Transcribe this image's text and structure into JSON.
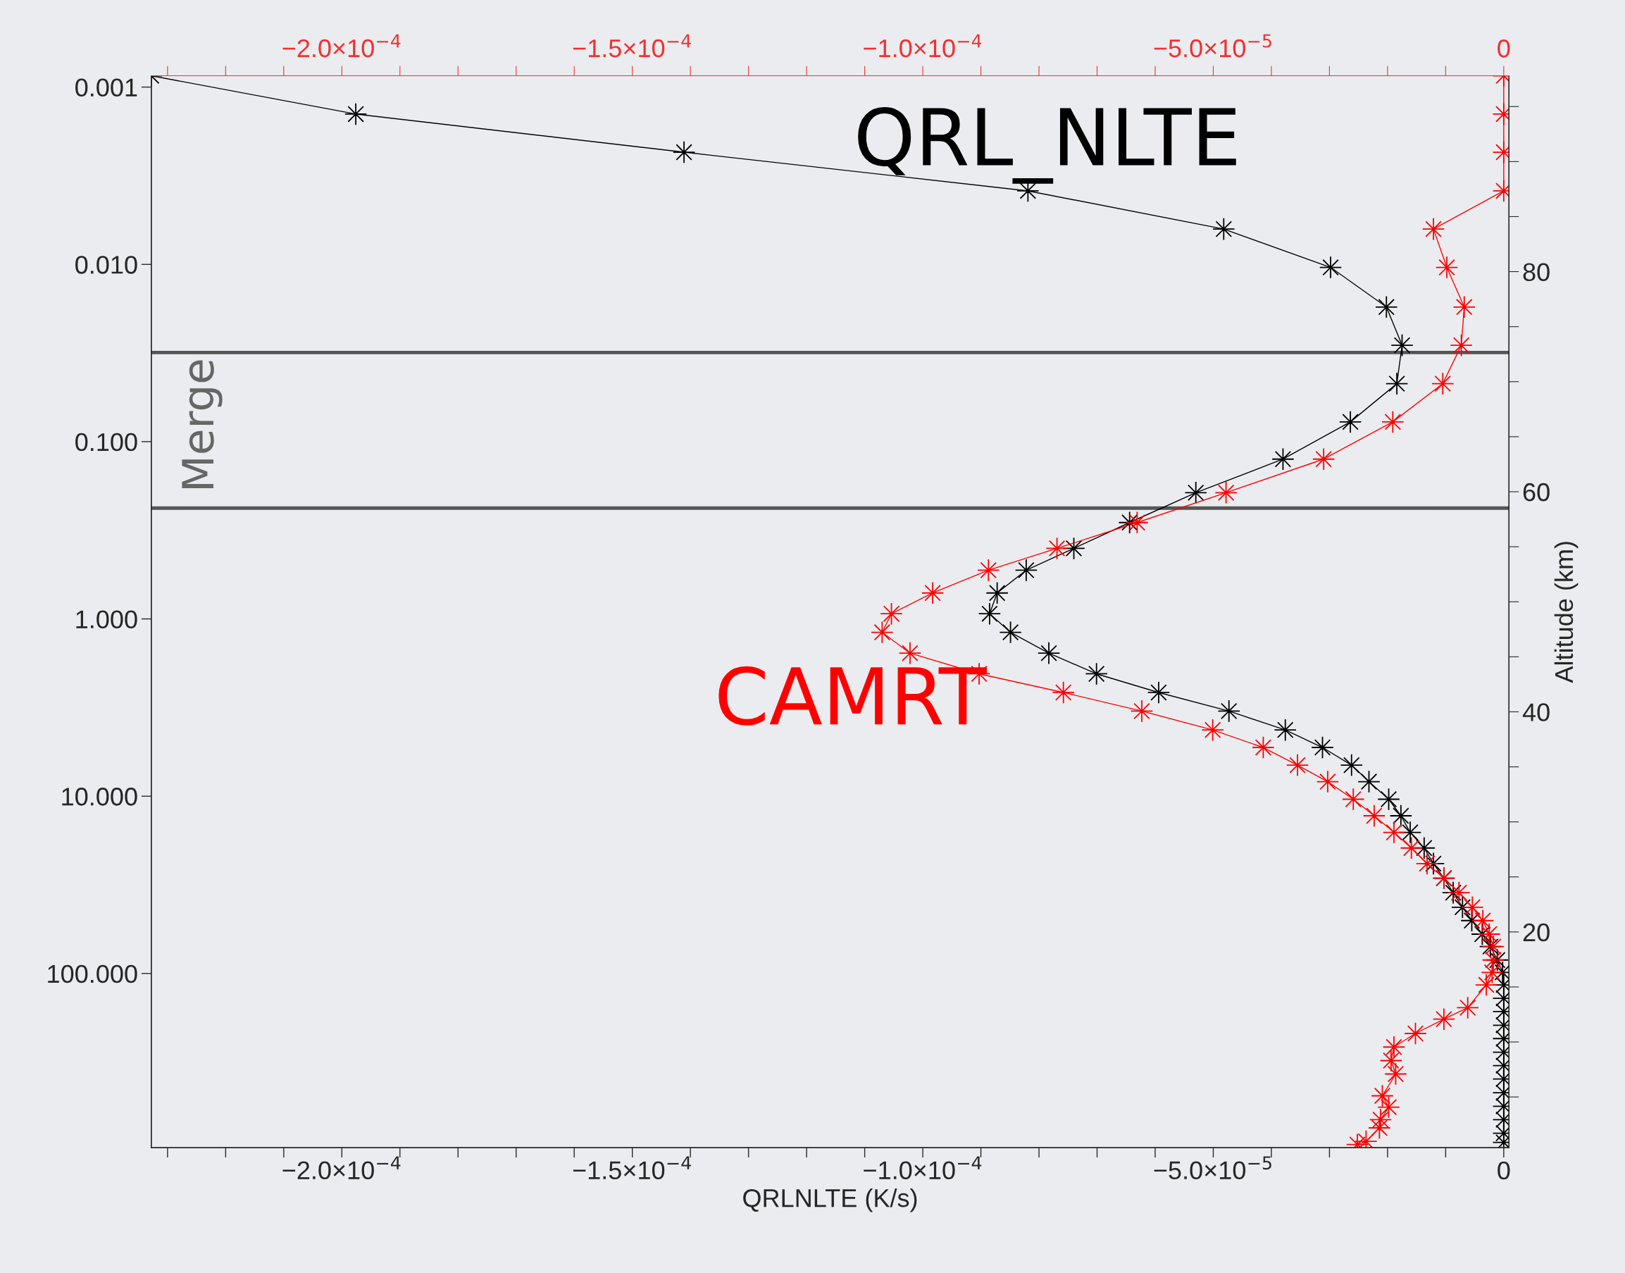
{
  "chart_data": {
    "type": "line",
    "xlabel": "QRLNLTE (K/s)",
    "y2label": "Altitude (km)",
    "xlim": [
      -0.0002328,
      9e-07
    ],
    "ylim": [
      960,
      0.000863
    ],
    "log": "y",
    "y2lim": [
      0.4,
      97.8
    ],
    "x2lim": [
      -0.0002328,
      9e-07
    ],
    "xticks": [
      {
        "value": -0.0002,
        "label": "−2.0×10$^{−4}$"
      },
      {
        "value": -0.00015,
        "label": "−1.5×10$^{−4}$"
      },
      {
        "value": -0.0001,
        "label": "−1.0×10$^{−4}$"
      },
      {
        "value": -5e-05,
        "label": "−5.0×10$^{−5}$"
      },
      0,
      {
        "value": -0.00023,
        "label": null
      },
      {
        "value": -0.00022,
        "label": null
      },
      {
        "value": -0.00021,
        "label": null
      },
      {
        "value": -0.00019,
        "label": null
      },
      {
        "value": -0.00018,
        "label": null
      },
      {
        "value": -0.00017,
        "label": null
      },
      {
        "value": -0.00016,
        "label": null
      },
      {
        "value": -0.00014,
        "label": null
      },
      {
        "value": -0.00013,
        "label": null
      },
      {
        "value": -0.00012,
        "label": null
      },
      {
        "value": -0.00011,
        "label": null
      },
      {
        "value": -9e-05,
        "label": null
      },
      {
        "value": -8e-05,
        "label": null
      },
      {
        "value": -7e-05,
        "label": null
      },
      {
        "value": -6e-05,
        "label": null
      },
      {
        "value": -4e-05,
        "label": null
      },
      {
        "value": -3e-05,
        "label": null
      },
      {
        "value": -2e-05,
        "label": null
      },
      {
        "value": -1e-05,
        "label": null
      }
    ],
    "x2ticks": [
      {
        "value": -0.0002,
        "label": "−2.0×10$^{−4}$"
      },
      {
        "value": -0.00015,
        "label": "−1.5×10$^{−4}$"
      },
      {
        "value": -0.0001,
        "label": "−1.0×10$^{−4}$"
      },
      {
        "value": -5e-05,
        "label": "−5.0×10$^{−5}$"
      },
      0,
      {
        "value": -0.00023,
        "label": null
      },
      {
        "value": -0.00022,
        "label": null
      },
      {
        "value": -0.00021,
        "label": null
      },
      {
        "value": -0.00019,
        "label": null
      },
      {
        "value": -0.00018,
        "label": null
      },
      {
        "value": -0.00017,
        "label": null
      },
      {
        "value": -0.00016,
        "label": null
      },
      {
        "value": -0.00014,
        "label": null
      },
      {
        "value": -0.00013,
        "label": null
      },
      {
        "value": -0.00012,
        "label": null
      },
      {
        "value": -0.00011,
        "label": null
      },
      {
        "value": -9e-05,
        "label": null
      },
      {
        "value": -8e-05,
        "label": null
      },
      {
        "value": -7e-05,
        "label": null
      },
      {
        "value": -6e-05,
        "label": null
      },
      {
        "value": -4e-05,
        "label": null
      },
      {
        "value": -3e-05,
        "label": null
      },
      {
        "value": -2e-05,
        "label": null
      },
      {
        "value": -1e-05,
        "label": null
      }
    ],
    "yticks": [
      {
        "value": 0.001,
        "label": "0.001"
      },
      {
        "value": 0.01,
        "label": "0.010"
      },
      {
        "value": 0.1,
        "label": "0.100"
      },
      {
        "value": 1,
        "label": "1.000"
      },
      {
        "value": 10,
        "label": "10.000"
      },
      {
        "value": 100,
        "label": "100.000"
      }
    ],
    "y2ticks": [
      20,
      40,
      60,
      80,
      {
        "value": 5,
        "label": null
      },
      {
        "value": 10,
        "label": null
      },
      {
        "value": 15,
        "label": null
      },
      {
        "value": 25,
        "label": null
      },
      {
        "value": 30,
        "label": null
      },
      {
        "value": 35,
        "label": null
      },
      {
        "value": 45,
        "label": null
      },
      {
        "value": 50,
        "label": null
      },
      {
        "value": 55,
        "label": null
      },
      {
        "value": 65,
        "label": null
      },
      {
        "value": 70,
        "label": null
      },
      {
        "value": 75,
        "label": null
      },
      {
        "value": 85,
        "label": null
      },
      {
        "value": 90,
        "label": null
      },
      {
        "value": 95,
        "label": null
      }
    ],
    "marker": "star",
    "grid": false,
    "ref_lines": [
      {
        "axis": "y",
        "value": 0.0314,
        "color": "#555555"
      },
      {
        "axis": "y",
        "value": 0.237,
        "color": "#555555"
      }
    ],
    "annotations": [
      "Merge"
    ],
    "series": [
      {
        "name": "QRL_NLTE",
        "color": "#000000",
        "x": [
          -0.0002328,
          -0.0001976,
          -0.0001411,
          -8.19e-05,
          -4.82e-05,
          -2.98e-05,
          -2.02e-05,
          -1.75e-05,
          -1.84e-05,
          -2.64e-05,
          -3.8e-05,
          -5.3e-05,
          -6.44e-05,
          -7.4e-05,
          -8.22e-05,
          -8.72e-05,
          -8.85e-05,
          -8.49e-05,
          -7.83e-05,
          -7.01e-05,
          -5.94e-05,
          -4.73e-05,
          -3.76e-05,
          -3.12e-05,
          -2.62e-05,
          -2.32e-05,
          -1.98e-05,
          -1.77e-05,
          -1.61e-05,
          -1.37e-05,
          -1.21e-05,
          -1.03e-05,
          -8.7e-06,
          -7.1e-06,
          -5.5e-06,
          -3.7e-06,
          -2.3e-06,
          -1.1e-06,
          -2e-07,
          0,
          0,
          0,
          0,
          0,
          0,
          0,
          0,
          0,
          0,
          0,
          0,
          0
        ],
        "values": [
          0.000863,
          0.00142,
          0.00233,
          0.00385,
          0.00632,
          0.0104,
          0.0174,
          0.0286,
          0.0471,
          0.0774,
          0.1255,
          0.194,
          0.286,
          0.4,
          0.531,
          0.714,
          0.935,
          1.19,
          1.56,
          2.04,
          2.6,
          3.31,
          4.23,
          5.31,
          6.68,
          8.28,
          10.4,
          12.9,
          16.0,
          19.6,
          24.0,
          29.0,
          35.0,
          42.3,
          50.3,
          60.0,
          70.5,
          84.0,
          98.6,
          116,
          138,
          164,
          196,
          233,
          278,
          331,
          394,
          471,
          561,
          668,
          796,
          898
        ]
      },
      {
        "name": "CAMRT",
        "color": "#ff0000",
        "x": [
          0,
          0,
          0,
          0,
          -1.21e-05,
          -9.8e-06,
          -6.8e-06,
          -7.3e-06,
          -1.05e-05,
          -1.91e-05,
          -3.1e-05,
          -4.78e-05,
          -6.31e-05,
          -7.69e-05,
          -8.87e-05,
          -9.83e-05,
          -0.0001054,
          -0.000107,
          -0.0001022,
          -9.03e-05,
          -7.58e-05,
          -6.23e-05,
          -5.01e-05,
          -4.14e-05,
          -3.55e-05,
          -3.03e-05,
          -2.59e-05,
          -2.23e-05,
          -1.89e-05,
          -1.59e-05,
          -1.32e-05,
          -1.03e-05,
          -7.7e-06,
          -5.4e-06,
          -3.6e-06,
          -2.5e-06,
          -1.8e-06,
          -1.8e-06,
          -2e-06,
          -3e-06,
          -6.2e-06,
          -1.03e-05,
          -1.52e-05,
          -1.89e-05,
          -1.94e-05,
          -1.86e-05,
          -2.09e-05,
          -1.98e-05,
          -2.12e-05,
          -2.14e-05,
          -2.37e-05,
          -2.52e-05
        ],
        "values": [
          0.000863,
          0.00142,
          0.00233,
          0.00385,
          0.00632,
          0.0104,
          0.0174,
          0.0286,
          0.0471,
          0.0774,
          0.1255,
          0.194,
          0.286,
          0.4,
          0.531,
          0.714,
          0.935,
          1.19,
          1.56,
          2.04,
          2.6,
          3.31,
          4.23,
          5.31,
          6.68,
          8.28,
          10.4,
          12.9,
          16.0,
          19.6,
          24.0,
          29.0,
          35.0,
          42.3,
          50.3,
          60.0,
          70.5,
          84.0,
          98.6,
          116,
          156,
          181,
          218,
          260,
          310,
          369,
          490,
          568,
          668,
          743,
          885,
          923
        ]
      }
    ]
  }
}
